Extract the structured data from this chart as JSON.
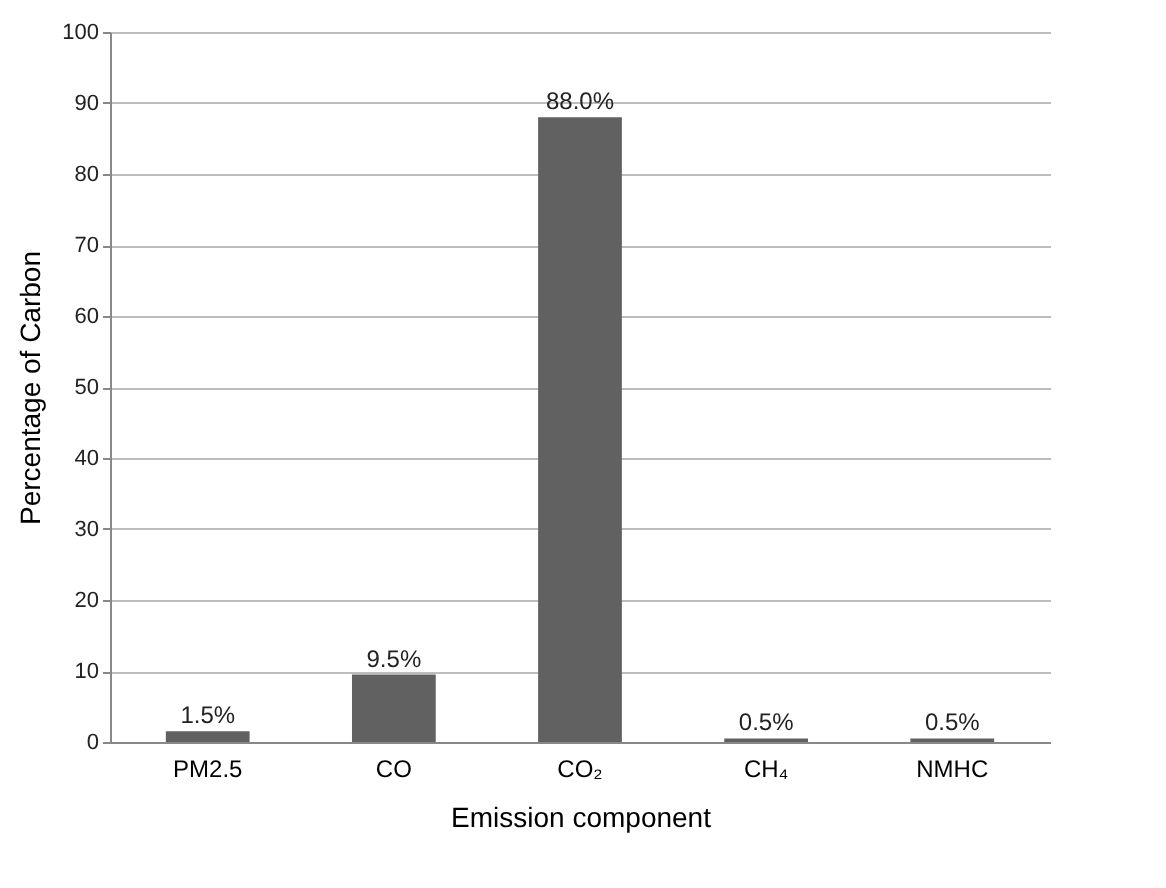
{
  "chart_data": {
    "type": "bar",
    "xlabel": "Emission component",
    "ylabel": "Percentage of Carbon",
    "categories": [
      "PM2.5",
      "CO",
      "CO₂",
      "CH₄",
      "NMHC"
    ],
    "values": [
      1.5,
      9.5,
      88.0,
      0.5,
      0.5
    ],
    "value_labels": [
      "1.5%",
      "9.5%",
      "88.0%",
      "0.5%",
      "0.5%"
    ],
    "color": "#616161",
    "ylim": [
      0,
      100
    ],
    "yticks": [
      0,
      10,
      20,
      30,
      40,
      50,
      60,
      70,
      80,
      90,
      100
    ],
    "grid": "y"
  }
}
